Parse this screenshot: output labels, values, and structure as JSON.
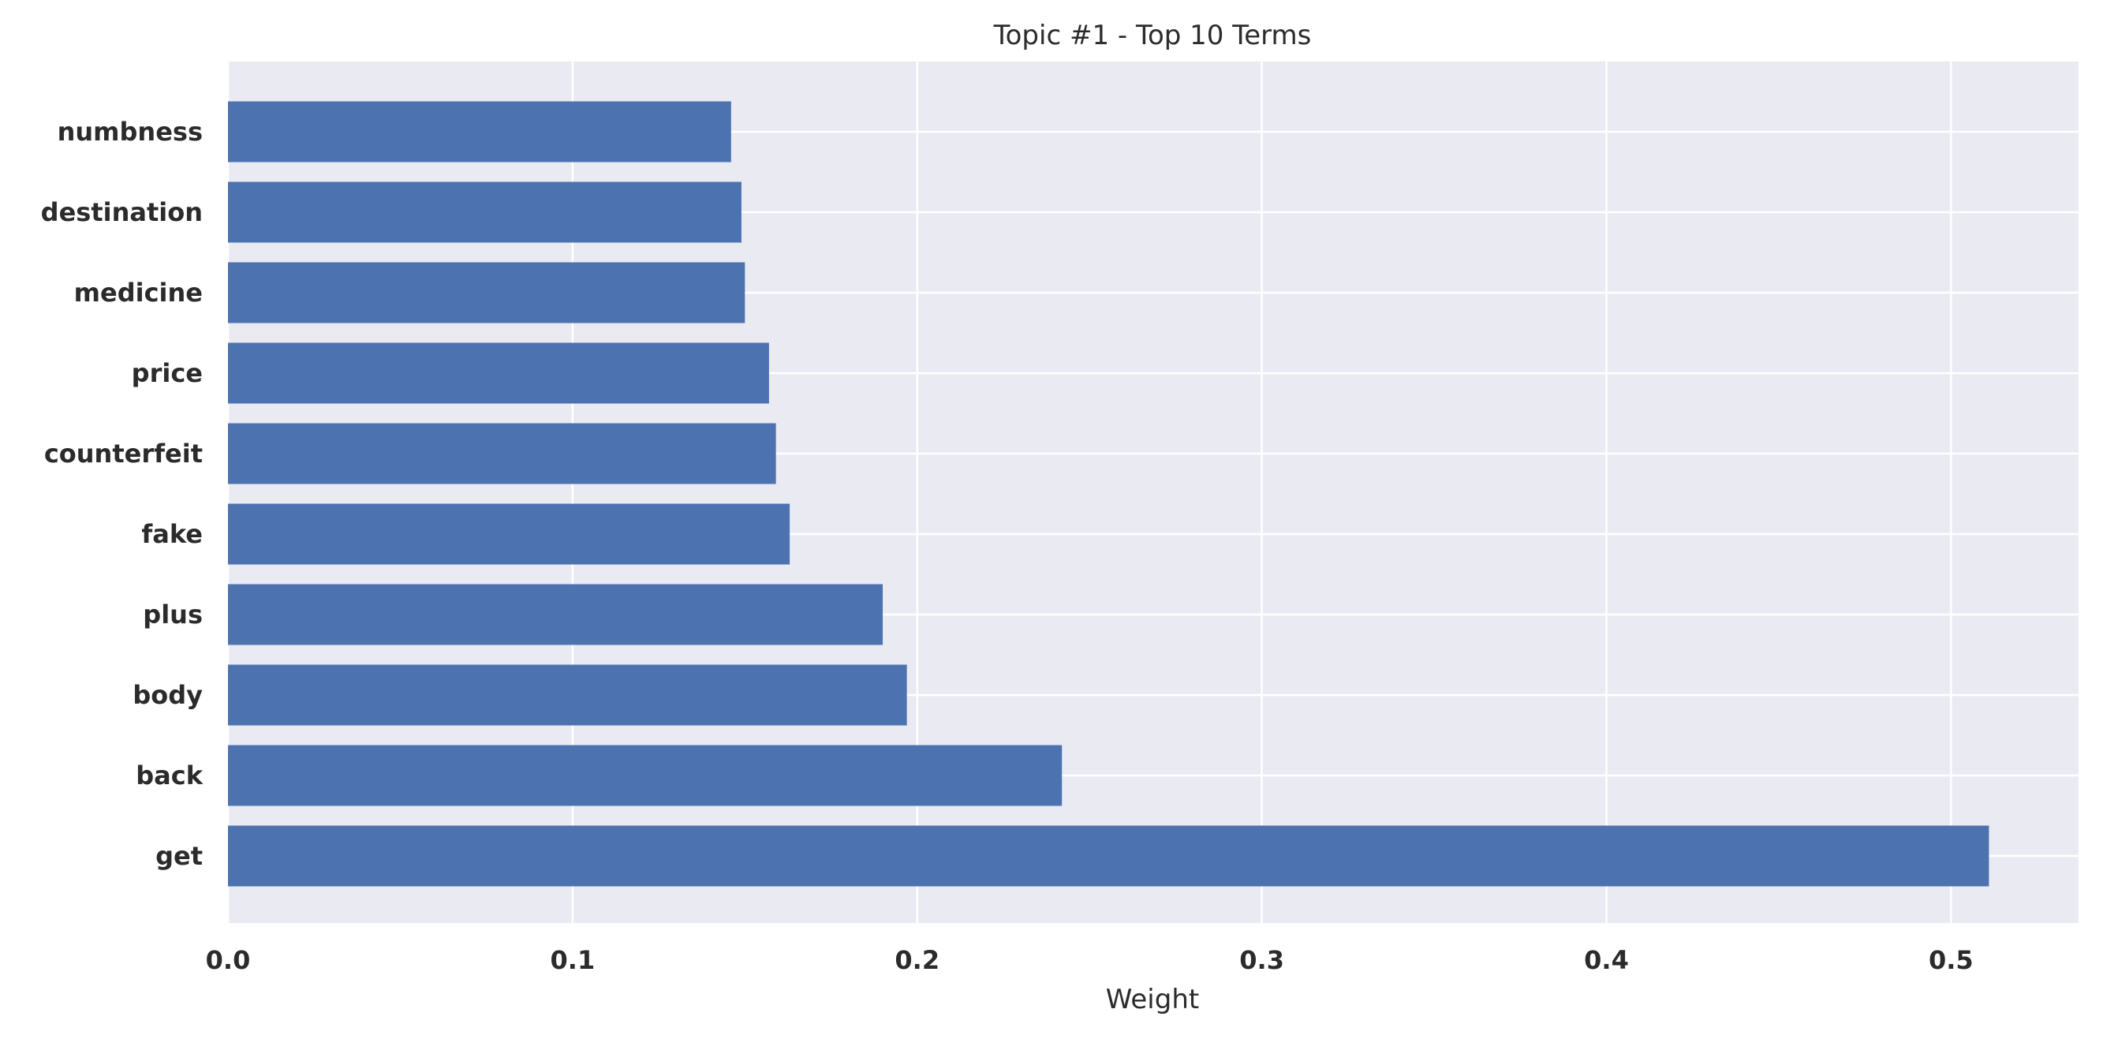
{
  "chart_data": {
    "type": "bar",
    "orientation": "horizontal",
    "title": "Topic #1 - Top 10 Terms",
    "xlabel": "Weight",
    "ylabel": "",
    "categories": [
      "get",
      "back",
      "body",
      "plus",
      "fake",
      "counterfeit",
      "price",
      "medicine",
      "destination",
      "numbness"
    ],
    "values": [
      0.511,
      0.242,
      0.197,
      0.19,
      0.163,
      0.159,
      0.157,
      0.15,
      0.149,
      0.146
    ],
    "xlim": [
      0,
      0.537
    ],
    "xticks": [
      {
        "value": 0.0,
        "label": "0.0"
      },
      {
        "value": 0.1,
        "label": "0.1"
      },
      {
        "value": 0.2,
        "label": "0.2"
      },
      {
        "value": 0.3,
        "label": "0.3"
      },
      {
        "value": 0.4,
        "label": "0.4"
      },
      {
        "value": 0.5,
        "label": "0.5"
      }
    ],
    "grid": true,
    "legend": "none",
    "colors": {
      "bar": "#4c72b0",
      "plot_background": "#eaeaf2",
      "grid": "#ffffff"
    }
  }
}
